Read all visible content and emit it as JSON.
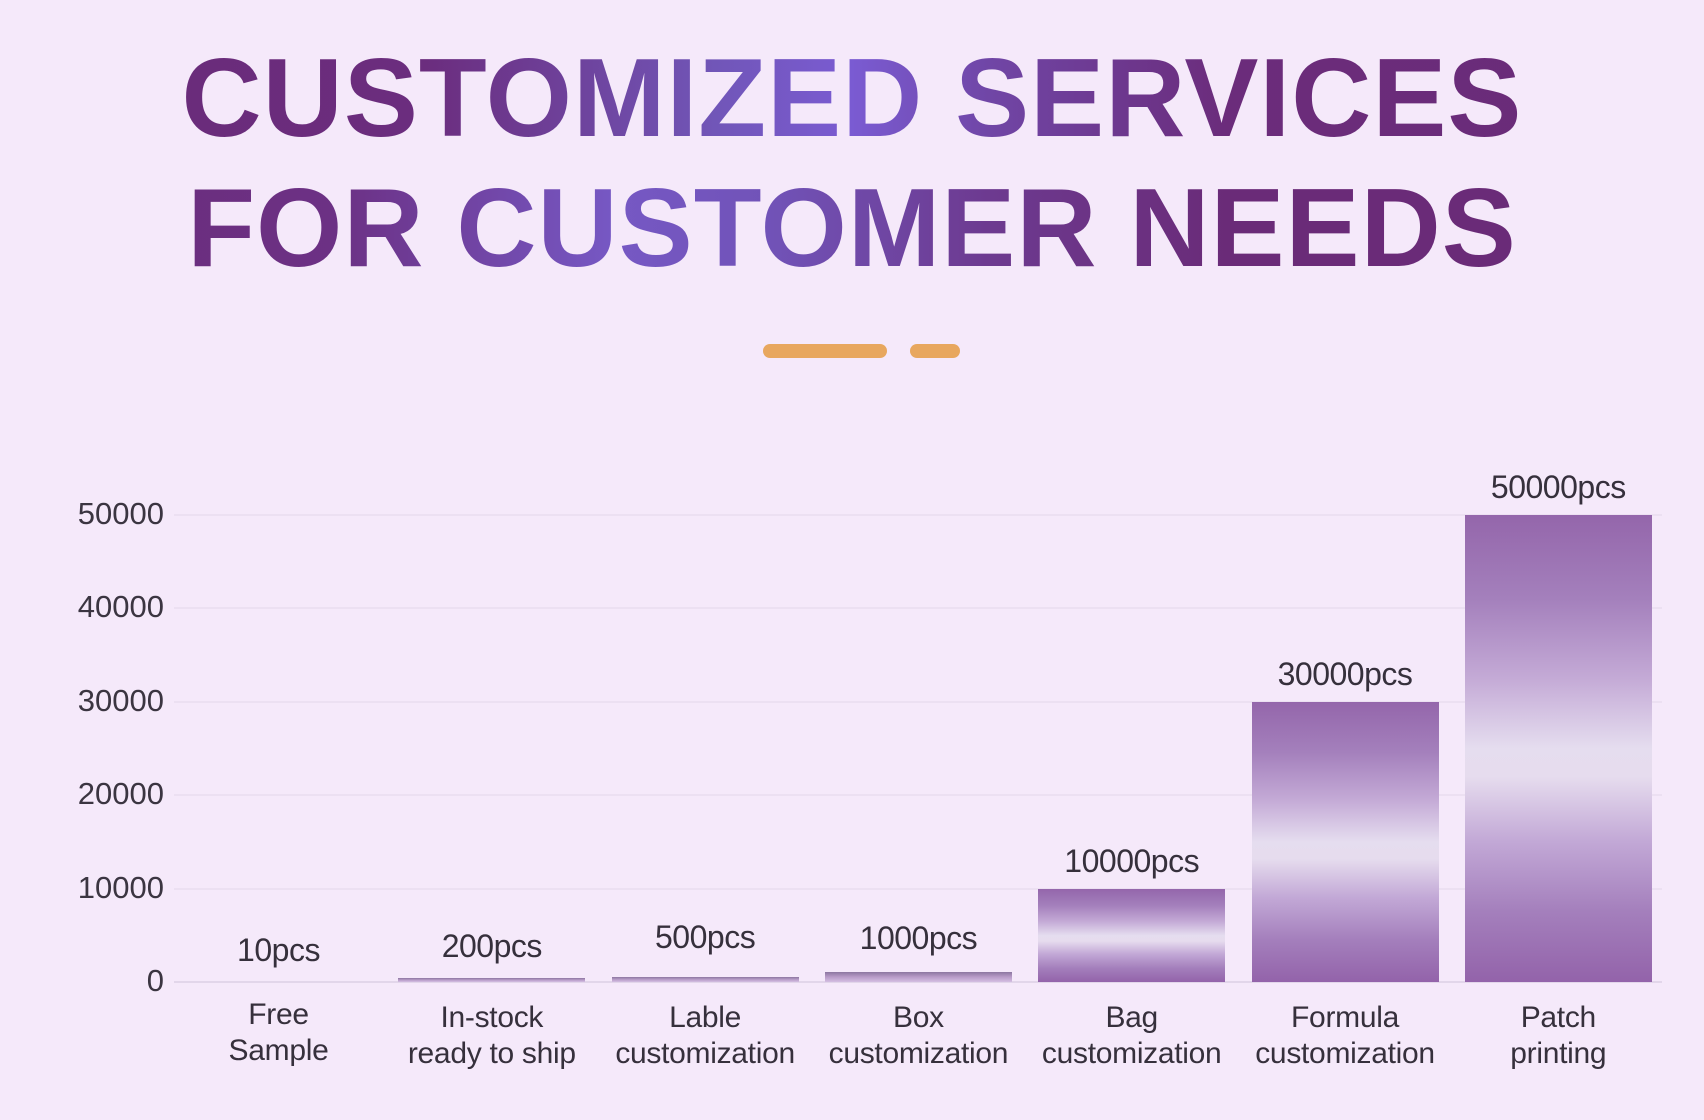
{
  "title": {
    "line1": "CUSTOMIZED SERVICES",
    "line2": "FOR CUSTOMER NEEDS"
  },
  "colors": {
    "background": "#f5e9fa",
    "title_dark": "#6a2b78",
    "title_highlight": "#7a5bd2",
    "divider": "#e8a75e",
    "bar_edge": "#9466ab",
    "bar_center": "#e5ddef",
    "text": "#36303c"
  },
  "chart_data": {
    "type": "bar",
    "title": "CUSTOMIZED SERVICES FOR CUSTOMER NEEDS",
    "xlabel": "",
    "ylabel": "",
    "ylim": [
      0,
      50000
    ],
    "yticks": [
      0,
      10000,
      20000,
      30000,
      40000,
      50000
    ],
    "ytick_labels": [
      "0",
      "10000",
      "20000",
      "30000",
      "40000",
      "50000"
    ],
    "grid": true,
    "legend": null,
    "categories": [
      "Free Sample",
      "In-stock ready to ship",
      "Lable customization",
      "Box customization",
      "Bag customization",
      "Formula customization",
      "Patch printing"
    ],
    "category_lines": [
      [
        "Free",
        "Sample"
      ],
      [
        "In-stock",
        "ready to ship"
      ],
      [
        "Lable",
        "customization"
      ],
      [
        "Box",
        "customization"
      ],
      [
        "Bag",
        "customization"
      ],
      [
        "Formula",
        "customization"
      ],
      [
        "Patch",
        "printing"
      ]
    ],
    "values": [
      10,
      200,
      500,
      1000,
      10000,
      30000,
      50000
    ],
    "data_labels": [
      "10pcs",
      "200pcs",
      "500pcs",
      "1000pcs",
      "10000pcs",
      "30000pcs",
      "50000pcs"
    ],
    "unit": "pcs"
  }
}
